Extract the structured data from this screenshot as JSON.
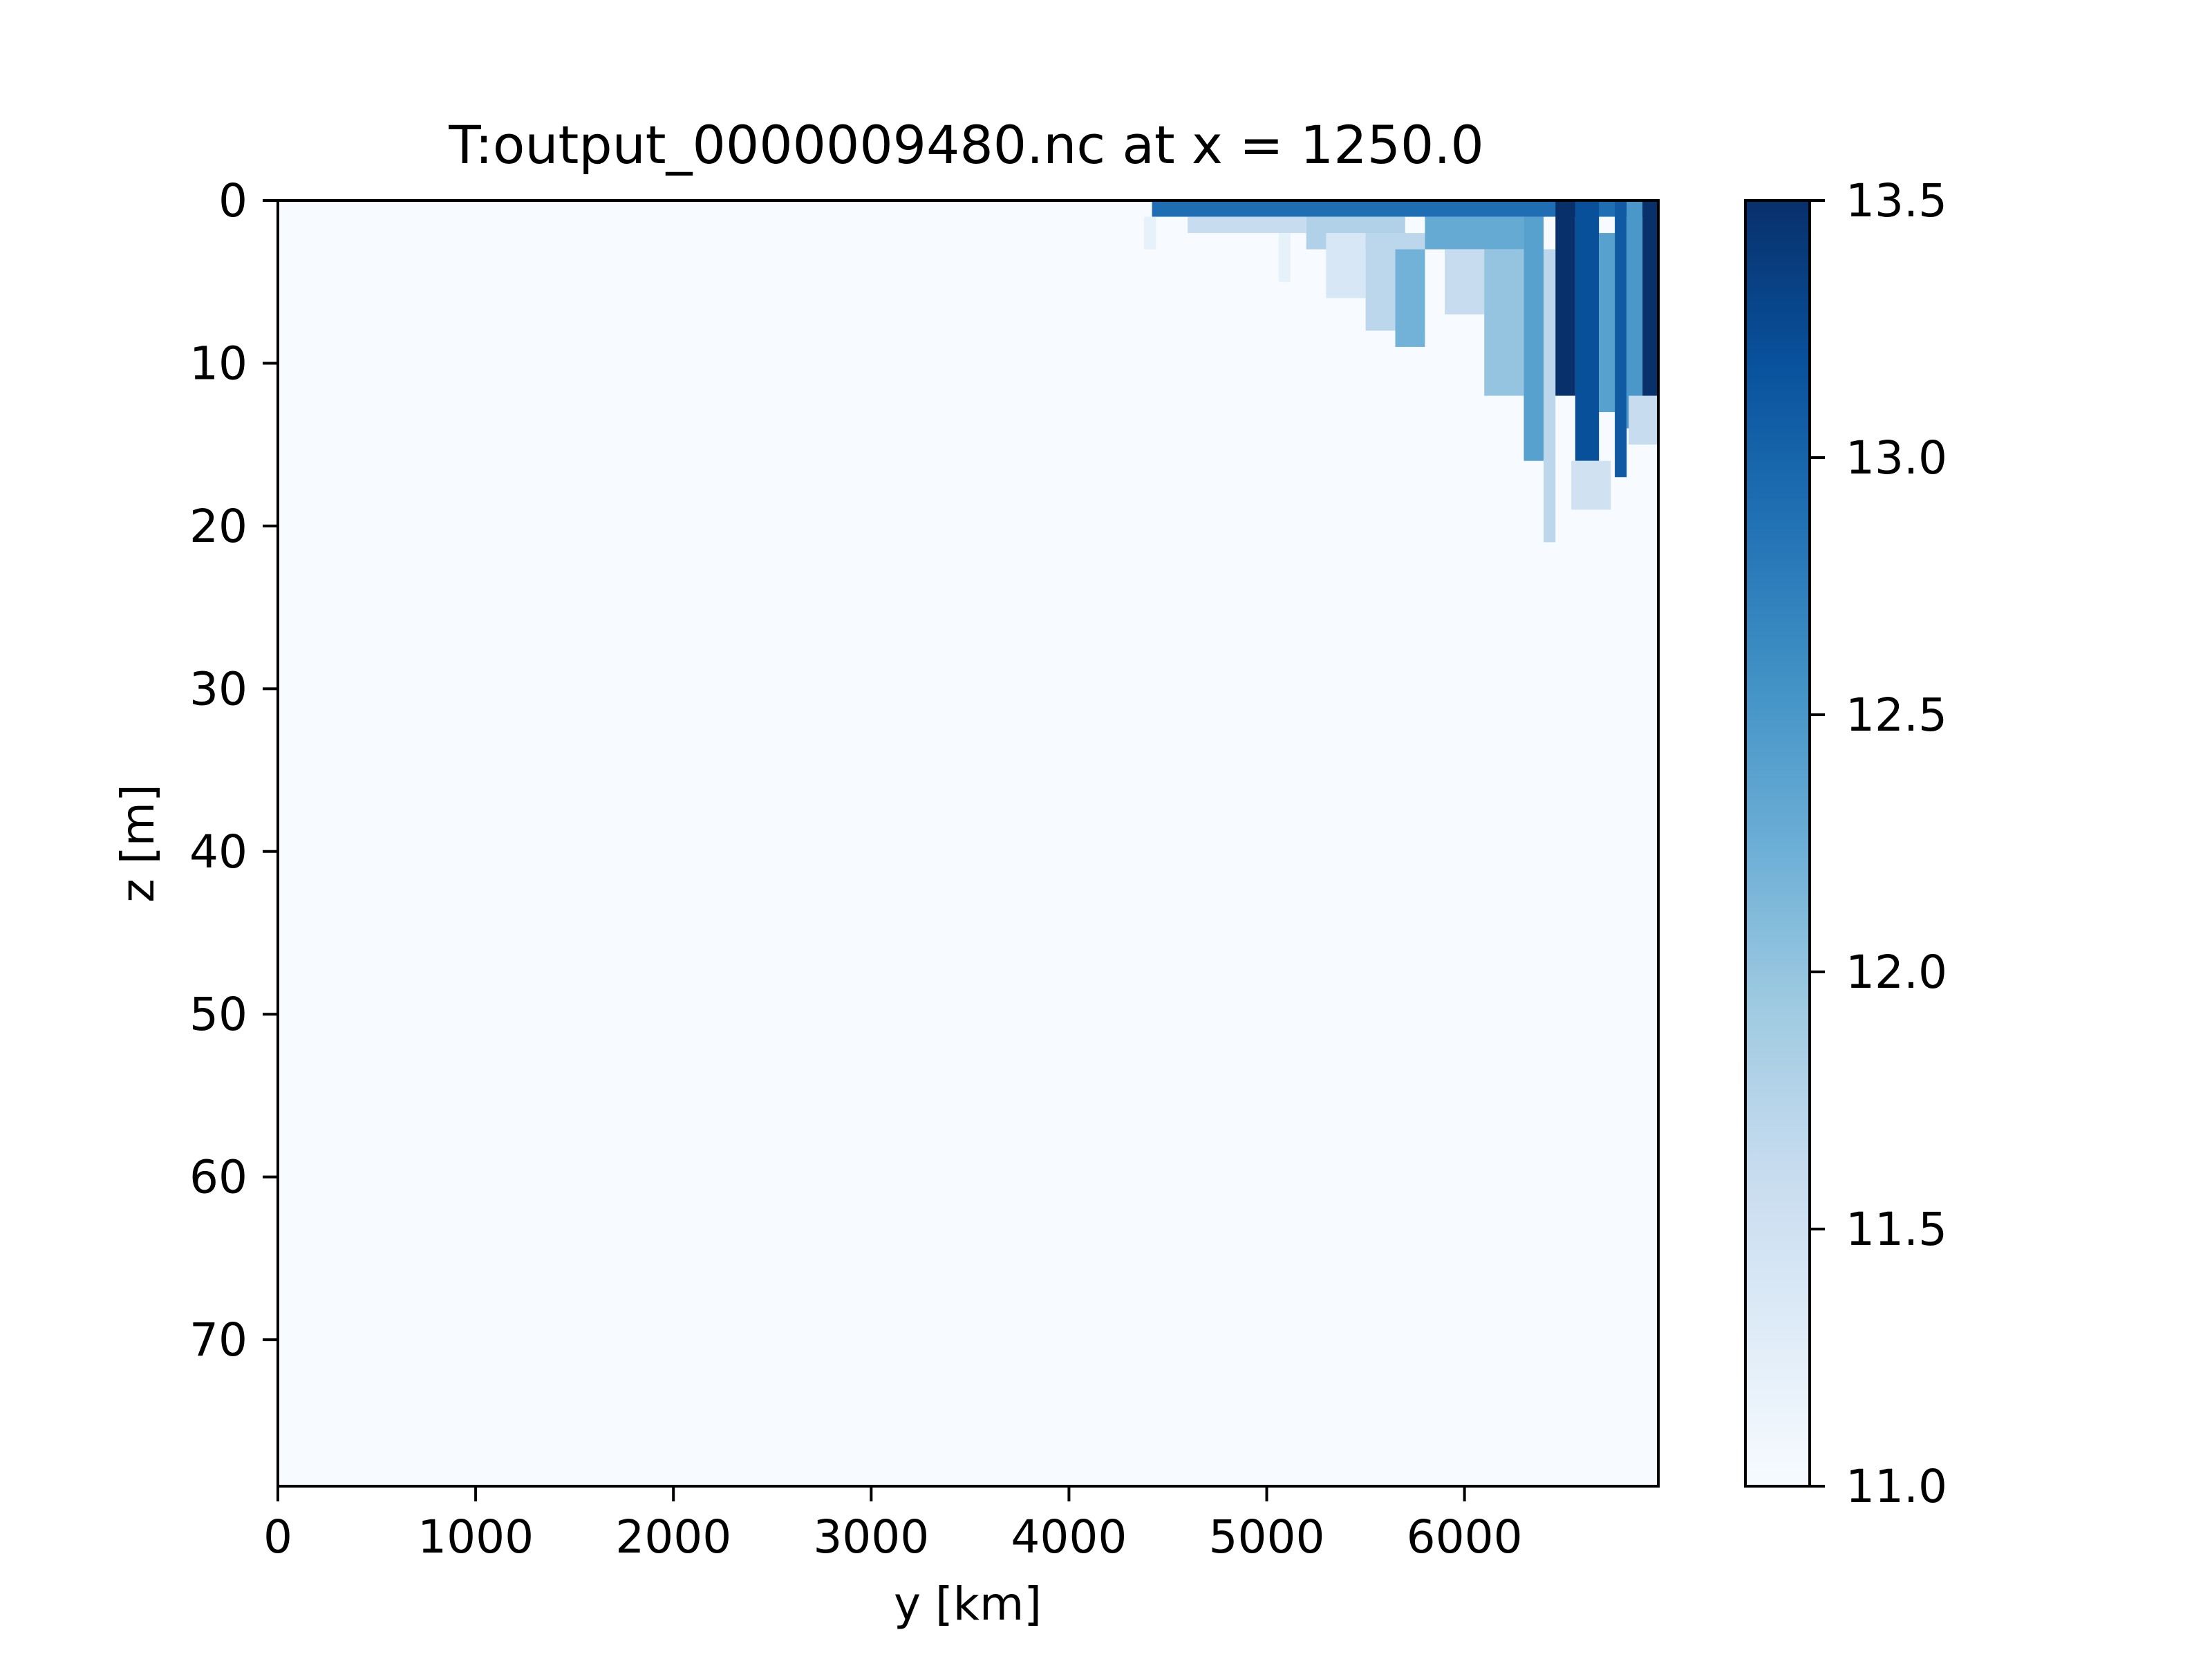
{
  "chart_data": {
    "type": "heatmap",
    "title": "T:output_0000009480.nc at x = 1250.0",
    "xlabel": "y [km]",
    "ylabel": "z [m]",
    "xlim": [
      0,
      6980
    ],
    "ylim": [
      79,
      0
    ],
    "y_inverted": true,
    "xticks": [
      0,
      1000,
      2000,
      3000,
      4000,
      5000,
      6000
    ],
    "xtick_labels": [
      "0",
      "1000",
      "2000",
      "3000",
      "4000",
      "5000",
      "6000"
    ],
    "yticks": [
      0,
      10,
      20,
      30,
      40,
      50,
      60,
      70
    ],
    "ytick_labels": [
      "0",
      "10",
      "20",
      "30",
      "40",
      "50",
      "60",
      "70"
    ],
    "colormap": "Blues",
    "colorbar": {
      "min": 11.0,
      "max": 13.5,
      "ticks": [
        11.0,
        11.5,
        12.0,
        12.5,
        13.0,
        13.5
      ],
      "tick_labels": [
        "11.0",
        "11.5",
        "12.0",
        "12.5",
        "13.0",
        "13.5"
      ],
      "colors": [
        "#f7fbff",
        "#deebf7",
        "#c6dbef",
        "#9ecae1",
        "#6baed6",
        "#4292c6",
        "#2171b5",
        "#08519c",
        "#08306b"
      ]
    },
    "background_value": 11.0,
    "warm_patches": [
      {
        "y": [
          4420,
          6980
        ],
        "z": [
          0,
          1
        ],
        "value": 12.9
      },
      {
        "y": [
          4380,
          4440
        ],
        "z": [
          1,
          3
        ],
        "value": 11.2
      },
      {
        "y": [
          4600,
          5200
        ],
        "z": [
          1,
          2
        ],
        "value": 11.6
      },
      {
        "y": [
          5200,
          5700
        ],
        "z": [
          1,
          3
        ],
        "value": 11.8
      },
      {
        "y": [
          5060,
          5120
        ],
        "z": [
          2,
          5
        ],
        "value": 11.2
      },
      {
        "y": [
          5300,
          5500
        ],
        "z": [
          2,
          6
        ],
        "value": 11.4
      },
      {
        "y": [
          5500,
          5800
        ],
        "z": [
          2,
          8
        ],
        "value": 11.7
      },
      {
        "y": [
          5650,
          5800
        ],
        "z": [
          3,
          9
        ],
        "value": 12.2
      },
      {
        "y": [
          5800,
          6300
        ],
        "z": [
          1,
          3
        ],
        "value": 12.3
      },
      {
        "y": [
          5900,
          6250
        ],
        "z": [
          3,
          7
        ],
        "value": 11.6
      },
      {
        "y": [
          6100,
          6300
        ],
        "z": [
          3,
          12
        ],
        "value": 12.0
      },
      {
        "y": [
          6300,
          6400
        ],
        "z": [
          1,
          16
        ],
        "value": 12.4
      },
      {
        "y": [
          6400,
          6460
        ],
        "z": [
          3,
          21
        ],
        "value": 11.7
      },
      {
        "y": [
          6460,
          6560
        ],
        "z": [
          0,
          12
        ],
        "value": 13.5
      },
      {
        "y": [
          6560,
          6680
        ],
        "z": [
          0,
          16
        ],
        "value": 13.2
      },
      {
        "y": [
          6540,
          6740
        ],
        "z": [
          16,
          19
        ],
        "value": 11.5
      },
      {
        "y": [
          6680,
          6760
        ],
        "z": [
          2,
          13
        ],
        "value": 12.4
      },
      {
        "y": [
          6760,
          6820
        ],
        "z": [
          0,
          17
        ],
        "value": 13.1
      },
      {
        "y": [
          6820,
          6900
        ],
        "z": [
          0,
          14
        ],
        "value": 12.5
      },
      {
        "y": [
          6900,
          6980
        ],
        "z": [
          0,
          12
        ],
        "value": 13.5
      },
      {
        "y": [
          6830,
          6980
        ],
        "z": [
          12,
          15
        ],
        "value": 11.6
      }
    ]
  }
}
